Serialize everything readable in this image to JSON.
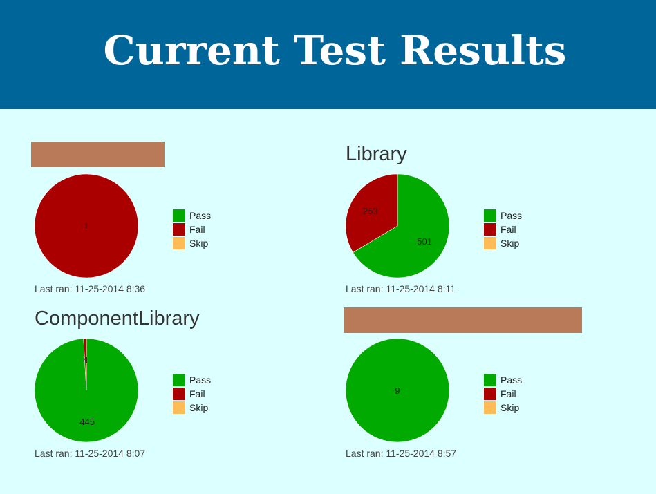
{
  "header": {
    "title": "Current Test Results"
  },
  "legend": [
    {
      "label": "Pass",
      "color": "#00aa00"
    },
    {
      "label": "Fail",
      "color": "#aa0000"
    },
    {
      "label": "Skip",
      "color": "#ffbb55"
    }
  ],
  "last_ran_prefix": "Last ran: ",
  "panels": [
    {
      "title": "",
      "last_ran": "11-25-2014 8:36"
    },
    {
      "title": "Library",
      "last_ran": "11-25-2014 8:11"
    },
    {
      "title": "ComponentLibrary",
      "last_ran": "11-25-2014 8:07"
    },
    {
      "title": "",
      "last_ran": "11-25-2014 8:57"
    }
  ],
  "chart_data": [
    {
      "type": "pie",
      "title": "",
      "categories": [
        "Pass",
        "Fail",
        "Skip"
      ],
      "values": [
        0,
        1,
        0
      ]
    },
    {
      "type": "pie",
      "title": "Library",
      "categories": [
        "Pass",
        "Fail",
        "Skip"
      ],
      "values": [
        501,
        253,
        0
      ]
    },
    {
      "type": "pie",
      "title": "ComponentLibrary",
      "categories": [
        "Pass",
        "Fail",
        "Skip"
      ],
      "values": [
        445,
        4,
        0
      ]
    },
    {
      "type": "pie",
      "title": "",
      "categories": [
        "Pass",
        "Fail",
        "Skip"
      ],
      "values": [
        9,
        0,
        0
      ]
    }
  ]
}
